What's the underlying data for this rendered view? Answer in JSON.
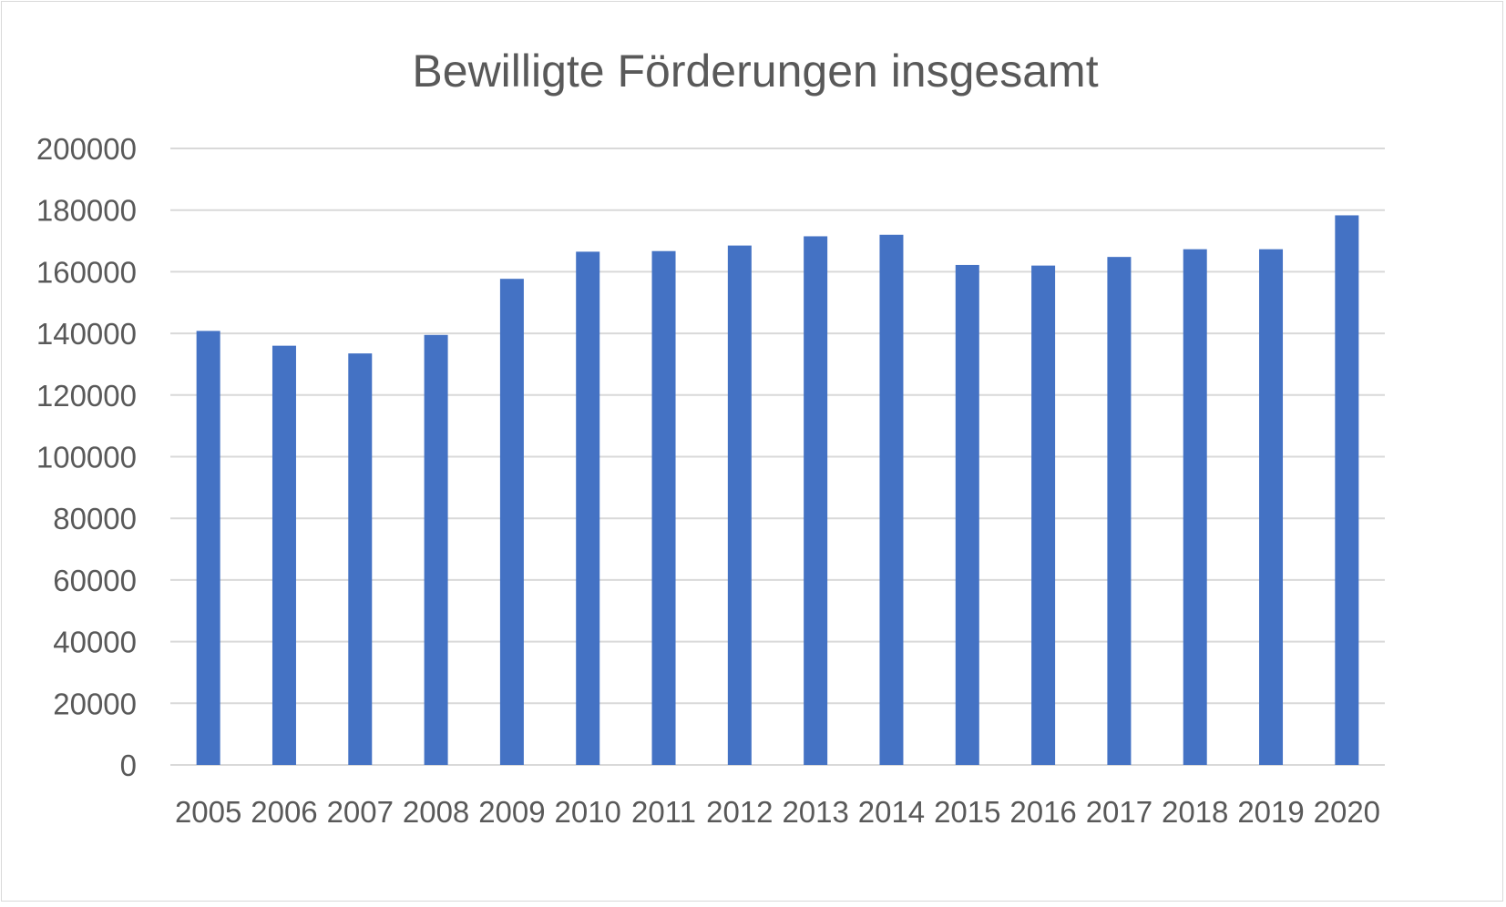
{
  "chart_data": {
    "type": "bar",
    "title": "Bewilligte Förderungen insgesamt",
    "xlabel": "",
    "ylabel": "",
    "categories": [
      "2005",
      "2006",
      "2007",
      "2008",
      "2009",
      "2010",
      "2011",
      "2012",
      "2013",
      "2014",
      "2015",
      "2016",
      "2017",
      "2018",
      "2019",
      "2020"
    ],
    "series": [
      {
        "values": [
          140800,
          136000,
          133500,
          139500,
          157700,
          166500,
          166700,
          168500,
          171500,
          172000,
          162200,
          162000,
          164800,
          167300,
          167300,
          178300
        ],
        "color": "#4472c4"
      }
    ],
    "ylim": [
      0,
      200000
    ],
    "yticks": [
      "0",
      "20000",
      "40000",
      "60000",
      "80000",
      "100000",
      "120000",
      "140000",
      "160000",
      "180000",
      "200000"
    ],
    "grid": true,
    "legend": "none",
    "colors": {
      "bar": "#4472c4",
      "grid": "#d9d9d9",
      "text": "#595959"
    }
  }
}
